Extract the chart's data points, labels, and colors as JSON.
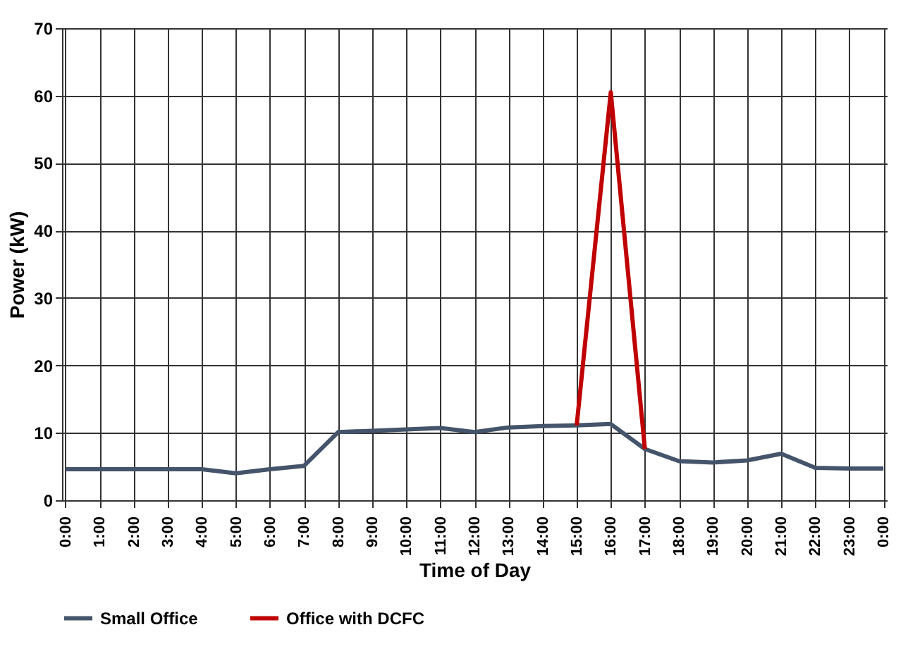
{
  "chart_data": {
    "type": "line",
    "xlabel": "Time of Day",
    "ylabel": "Power (kW)",
    "categories": [
      "0:00",
      "1:00",
      "2:00",
      "3:00",
      "4:00",
      "5:00",
      "6:00",
      "7:00",
      "8:00",
      "9:00",
      "10:00",
      "11:00",
      "12:00",
      "13:00",
      "14:00",
      "15:00",
      "16:00",
      "17:00",
      "18:00",
      "19:00",
      "20:00",
      "21:00",
      "22:00",
      "23:00",
      "0:00"
    ],
    "series": [
      {
        "name": "Small Office",
        "color": "#44546a",
        "values": [
          4.6,
          4.6,
          4.6,
          4.6,
          4.6,
          4.0,
          4.6,
          5.1,
          10.1,
          10.3,
          10.5,
          10.7,
          10.1,
          10.8,
          11.0,
          11.1,
          11.3,
          7.6,
          5.8,
          5.6,
          5.9,
          6.9,
          4.8,
          4.7,
          4.7
        ]
      },
      {
        "name": "Office with DCFC",
        "color": "#c00000",
        "values": [
          null,
          null,
          null,
          null,
          null,
          null,
          null,
          null,
          null,
          null,
          null,
          null,
          null,
          null,
          null,
          11.1,
          60.5,
          7.6,
          null,
          null,
          null,
          null,
          null,
          null,
          null
        ]
      }
    ],
    "ylim": [
      0,
      70
    ],
    "yticks": [
      0,
      10,
      20,
      30,
      40,
      50,
      60,
      70
    ],
    "grid": true,
    "legend": "bottom",
    "marker": "none",
    "line_style": "solid"
  }
}
